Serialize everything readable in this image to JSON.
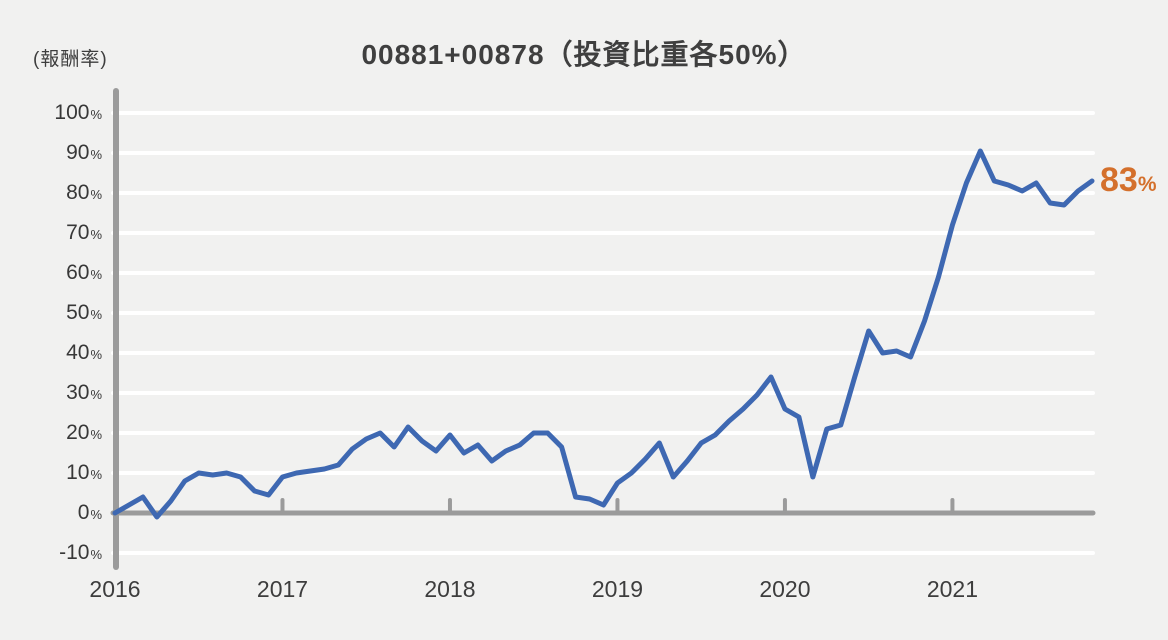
{
  "header": {
    "y_axis_unit_label": "(報酬率)",
    "title": "00881+00878（投資比重各50%）"
  },
  "end_label": {
    "value": "83",
    "unit": "%"
  },
  "colors": {
    "background": "#f1f1f0",
    "line": "#3e68b2",
    "grid": "#ffffff",
    "axis": "#9b9b9b",
    "text": "#3d3d3d",
    "highlight": "#d4702c"
  },
  "chart_data": {
    "type": "line",
    "title": "00881+00878（投資比重各50%）",
    "ylabel": "(報酬率)",
    "x_start": "2016-01",
    "x_interval": "monthly",
    "x_end": "2021-11",
    "x_ticks": [
      "2016",
      "2017",
      "2018",
      "2019",
      "2020",
      "2021"
    ],
    "months_per_tick": 12,
    "y_ticks": [
      100,
      90,
      80,
      70,
      60,
      50,
      40,
      30,
      20,
      10,
      0,
      -10
    ],
    "y_tick_suffix": "%",
    "ylim": [
      -15,
      105
    ],
    "grid": "horizontal-white-lines",
    "legend": "none",
    "end_annotation": "83%",
    "series": [
      {
        "name": "00881+00878（投資比重各50%）",
        "values": [
          0,
          2,
          4,
          -1,
          3,
          8,
          10,
          9.5,
          10,
          9,
          5.5,
          4.5,
          9,
          10,
          10.5,
          11,
          12,
          16,
          18.5,
          20,
          16.5,
          21.5,
          18,
          15.5,
          19.5,
          15,
          17,
          13,
          15.5,
          17,
          20,
          20,
          16.5,
          4,
          3.5,
          2,
          7.5,
          10,
          13.5,
          17.5,
          9,
          13,
          17.5,
          19.5,
          23,
          26,
          29.5,
          34,
          26,
          24,
          9,
          21,
          22,
          34,
          45.5,
          40,
          40.5,
          39,
          48,
          59,
          72,
          82.5,
          90.5,
          83,
          82,
          80.5,
          82.5,
          77.5,
          77,
          80.5,
          83
        ]
      }
    ]
  }
}
